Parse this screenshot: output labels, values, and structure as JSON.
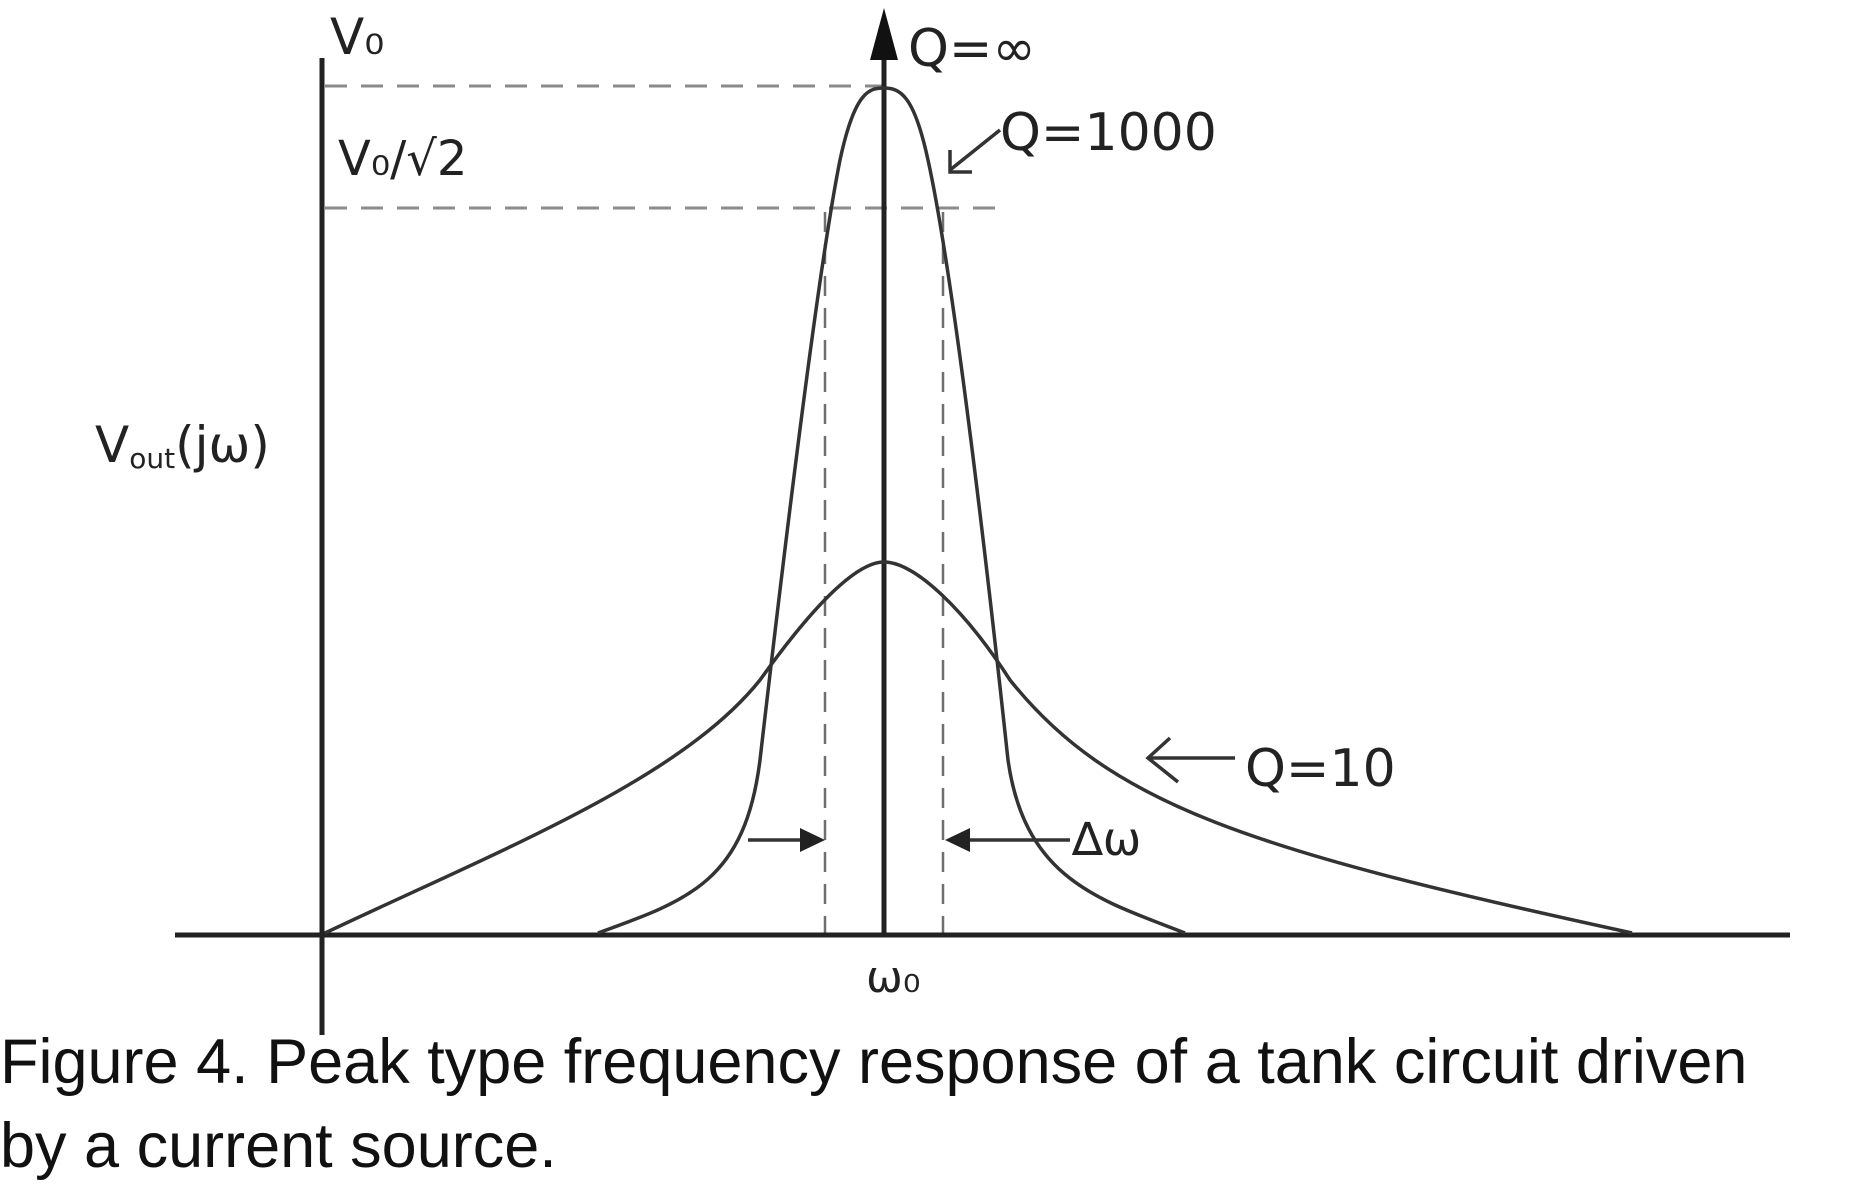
{
  "labels": {
    "v0": "V₀",
    "v0_over_root2": "V₀/√2",
    "y_axis_main": "V",
    "y_axis_sub": "out",
    "y_axis_tail": "(jω)",
    "omega0": "ω₀",
    "q_inf": "Q=∞",
    "q_1000": "Q=1000",
    "q_10": "Q=10",
    "delta_omega": "∆ω"
  },
  "caption": {
    "line1": "Figure 4. Peak type frequency response of a tank circuit driven",
    "line2": "by a current source."
  }
}
